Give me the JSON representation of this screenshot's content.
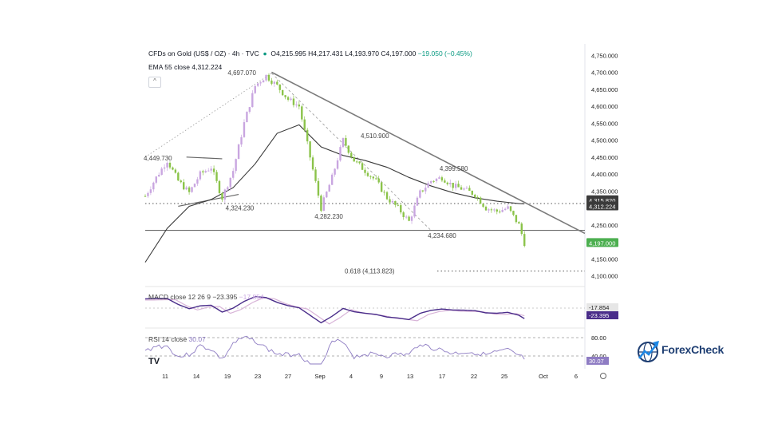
{
  "header": {
    "symbol": "CFDs on Gold (US$ / OZ) · 4h · TVC",
    "open": "O4,215.995",
    "high": "H4,217.431",
    "low": "L4,193.970",
    "close": "C4,197.000",
    "change": "−19.050 (−0.45%)",
    "ema_label": "EMA 55 close",
    "ema_value": "4,312.224",
    "macd_label": "MACD close 12 26 9",
    "macd_value": "−23.395",
    "macd_value2": "−17.854",
    "rsi_label": "RSI 14 close",
    "rsi_value": "30.07"
  },
  "logo": {
    "text": "ForexCheck"
  },
  "colors": {
    "up": "#089981",
    "down": "#b6d7a8",
    "candle_up": "#c9a6e0",
    "candle_down": "#8bc34a",
    "ema": "#3a3a3a",
    "trend": "#7a7a7a",
    "macd": "#4a2d8a",
    "signal": "#d8b4d8",
    "rsi": "#8e7cc3",
    "price_tag": "#4caf50",
    "ema_tag": "#3a3a3a"
  },
  "chart_data": {
    "type": "candlestick",
    "title": "CFDs on Gold (US$ / OZ) · 4h · TVC",
    "x_ticks": [
      "11",
      "14",
      "19",
      "23",
      "27",
      "Sep",
      "4",
      "9",
      "13",
      "17",
      "22",
      "25",
      "Oct",
      "6"
    ],
    "y_ticks": [
      "4,750.000",
      "4,700.000",
      "4,650.000",
      "4,600.000",
      "4,550.000",
      "4,500.000",
      "4,450.000",
      "4,400.000",
      "4,350.000",
      "4,250.000",
      "4,150.000",
      "4,100.000"
    ],
    "ylim": [
      4085,
      4760
    ],
    "price_path": {
      "x": [
        0,
        4,
        8,
        12,
        16,
        20,
        24,
        28,
        32,
        36,
        40,
        44,
        48,
        52,
        56,
        60,
        64,
        68,
        72,
        76,
        80,
        84,
        88,
        92,
        96,
        100,
        104,
        108,
        112,
        116,
        120,
        124,
        128,
        132,
        136,
        138
      ],
      "y": [
        4335,
        4390,
        4440,
        4380,
        4345,
        4400,
        4420,
        4330,
        4410,
        4550,
        4660,
        4690,
        4660,
        4620,
        4600,
        4450,
        4300,
        4390,
        4500,
        4440,
        4410,
        4380,
        4330,
        4300,
        4260,
        4345,
        4380,
        4390,
        4365,
        4355,
        4340,
        4300,
        4290,
        4300,
        4250,
        4197
      ]
    },
    "ema": {
      "x": [
        0,
        8,
        16,
        24,
        32,
        40,
        48,
        56,
        64,
        72,
        80,
        88,
        96,
        104,
        112,
        120,
        128,
        136,
        138
      ],
      "y": [
        4140,
        4240,
        4305,
        4325,
        4360,
        4430,
        4520,
        4545,
        4480,
        4455,
        4440,
        4420,
        4390,
        4365,
        4345,
        4330,
        4320,
        4313,
        4312
      ]
    },
    "annotations": [
      {
        "label": "4,697.070",
        "x": 46,
        "y": 4697
      },
      {
        "label": "4,449.730",
        "x": 0,
        "y": 4450
      },
      {
        "label": "4,324.230",
        "x": 24,
        "y": 4324
      },
      {
        "label": "4,510.900",
        "x": 72,
        "y": 4511
      },
      {
        "label": "4,282.230",
        "x": 66,
        "y": 4282
      },
      {
        "label": "4,399.580",
        "x": 110,
        "y": 4400
      },
      {
        "label": "4,234.680",
        "x": 104,
        "y": 4235
      },
      {
        "label": "0.618 (4,113.823)",
        "x": 90,
        "y": 4114
      }
    ],
    "levels": [
      {
        "name": "support",
        "y": 4234,
        "style": "solid"
      },
      {
        "name": "resistance",
        "y": 4313,
        "style": "dotted"
      },
      {
        "name": "fib",
        "y": 4114,
        "style": "dotted"
      }
    ],
    "trendline": {
      "x": [
        46,
        160
      ],
      "y": [
        4700,
        4225
      ]
    },
    "price_tags": [
      {
        "label": "4,315.820",
        "y": 4316
      },
      {
        "label": "4,312.224",
        "y": 4312
      },
      {
        "label": "4,197.000",
        "y": 4197
      }
    ],
    "macd": {
      "levels": [
        "-17.854",
        "-23.395"
      ]
    },
    "rsi": {
      "levels": [
        "80.00",
        "40.00",
        "30.07"
      ]
    }
  }
}
